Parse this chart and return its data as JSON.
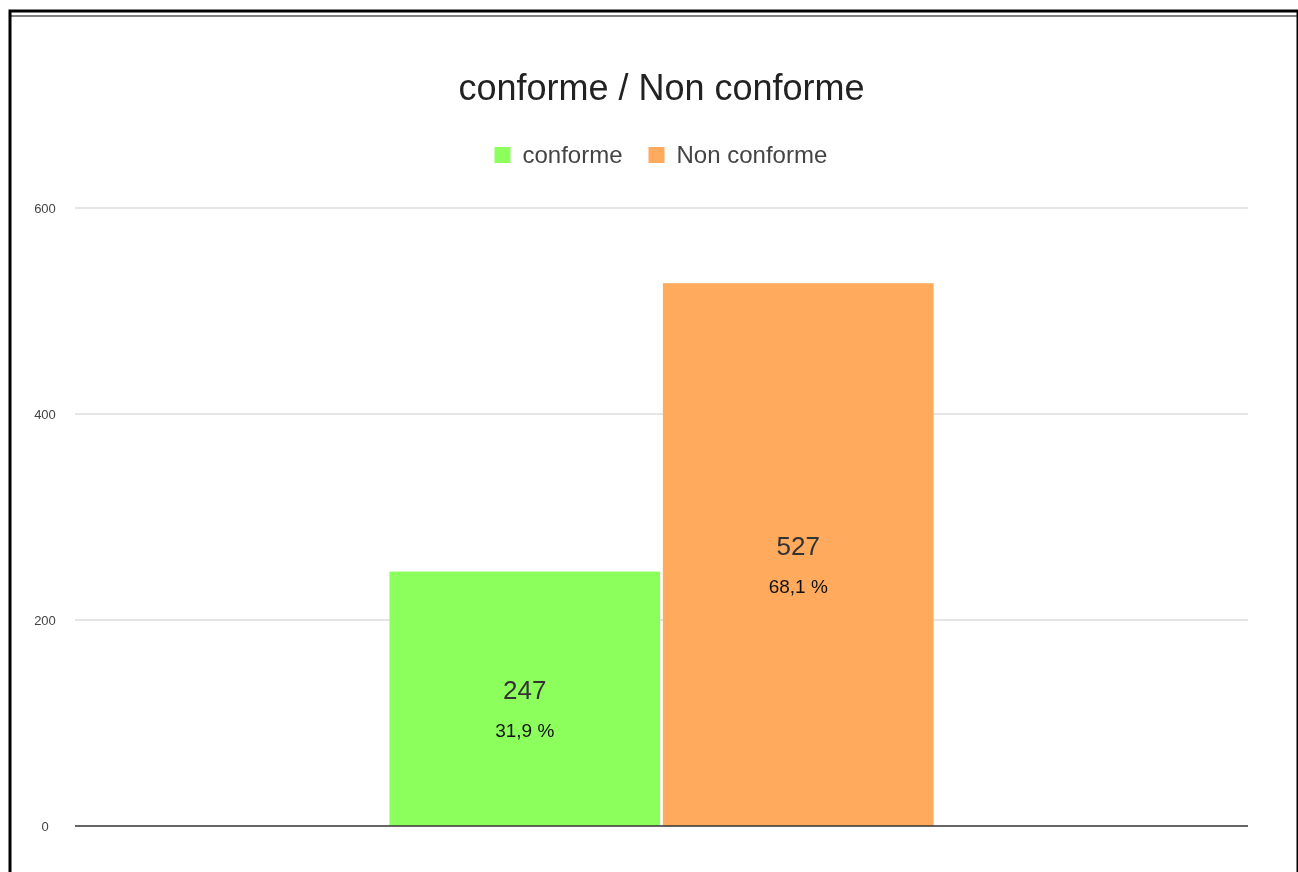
{
  "chart_data": {
    "type": "bar",
    "title": "conforme / Non conforme",
    "categories": [
      null
    ],
    "series": [
      {
        "name": "conforme",
        "color": "#8cff5c",
        "values": [
          247
        ],
        "value_labels": [
          "247"
        ]
      },
      {
        "name": "Non conforme",
        "color": "#ffaa5c",
        "values": [
          527
        ],
        "value_labels": [
          "527"
        ]
      }
    ],
    "annotations": [
      "31,9 %",
      "68,1 %"
    ],
    "ylim": [
      0,
      600
    ],
    "yticks": [
      0,
      200,
      400,
      600
    ],
    "grid": "y",
    "legend": "top"
  }
}
